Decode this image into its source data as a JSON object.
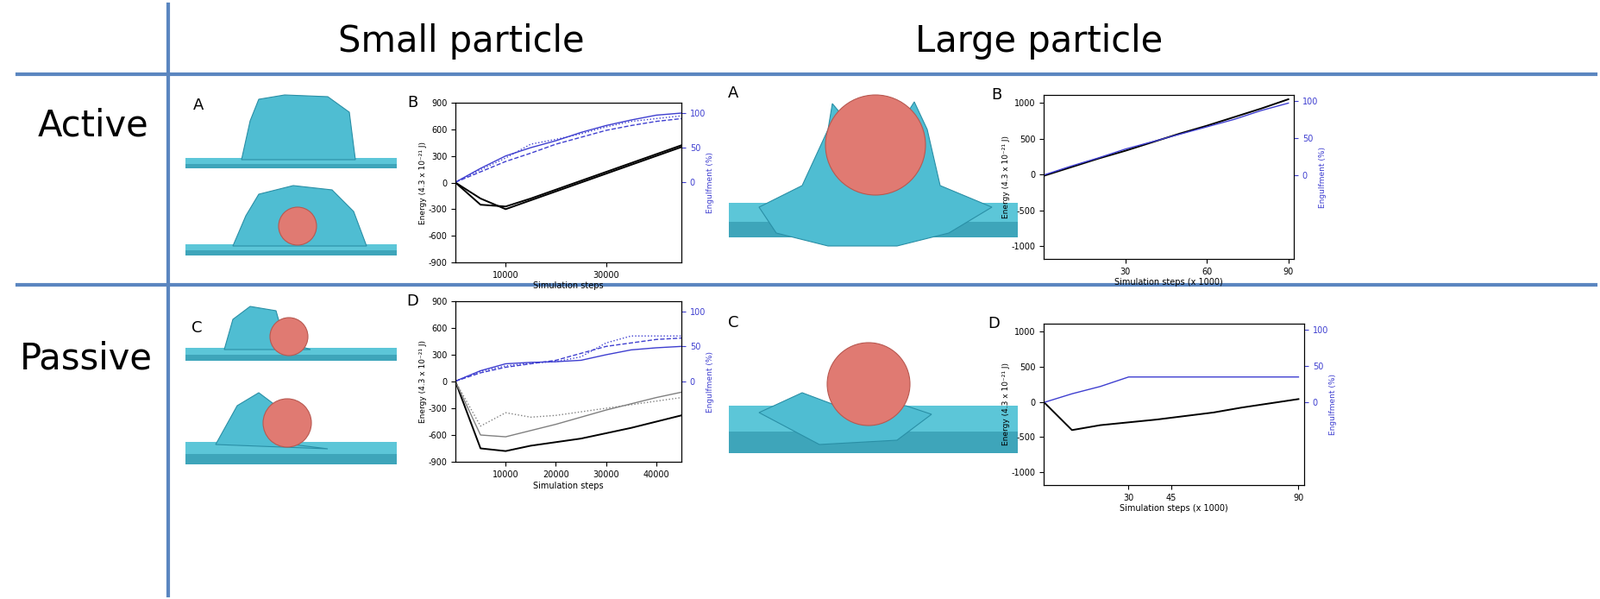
{
  "column_headers": [
    "Small particle",
    "Large particle"
  ],
  "row_headers": [
    "Active",
    "Passive"
  ],
  "image_labels": [
    "A",
    "A",
    "C",
    "C"
  ],
  "chart_data": [
    {
      "type": "line",
      "title": "B",
      "x_label": "Simulation steps",
      "y_label": "Energy (4.3 x 10⁻²¹ J)",
      "y2_label": "Engulfment (%)",
      "x": [
        0,
        5000,
        10000,
        15000,
        20000,
        25000,
        30000,
        35000,
        40000,
        45000
      ],
      "xlim": [
        0,
        45000
      ],
      "xticks": [
        10000,
        30000
      ],
      "ylim": [
        -900,
        900
      ],
      "yticks": [
        -900,
        -600,
        -300,
        0,
        300,
        600,
        900
      ],
      "y2lim": [
        -116,
        115
      ],
      "y2ticks": [
        0,
        50,
        100
      ],
      "grid": false,
      "series": [
        {
          "color": "#000000",
          "line_style": "solid",
          "values": [
            0,
            -250,
            -270,
            -180,
            -80,
            20,
            120,
            220,
            320,
            420
          ]
        },
        {
          "color": "#000000",
          "line_style": "solid",
          "values": [
            0,
            -180,
            -300,
            -200,
            -100,
            0,
            100,
            200,
            300,
            400
          ]
        },
        {
          "color": "#3f3fd0",
          "line_style": "solid",
          "axis": "y2",
          "values": [
            0,
            20,
            38,
            50,
            60,
            72,
            82,
            90,
            97,
            100
          ]
        },
        {
          "color": "#3f3fd0",
          "line_style": "dashed",
          "axis": "y2",
          "values": [
            0,
            15,
            30,
            42,
            55,
            65,
            75,
            82,
            88,
            92
          ]
        },
        {
          "color": "#3f3fd0",
          "line_style": "dotted",
          "axis": "y2",
          "values": [
            0,
            18,
            35,
            55,
            62,
            70,
            80,
            88,
            92,
            96
          ]
        }
      ]
    },
    {
      "type": "line",
      "title": "B",
      "x_label": "Simulation steps (x 1000)",
      "y_label": "Energy (4.3 x 10⁻²¹ J)",
      "y2_label": "Engulfment (%)",
      "x": [
        0,
        10,
        20,
        30,
        40,
        50,
        60,
        70,
        80,
        90
      ],
      "xlim": [
        0,
        92
      ],
      "xticks": [
        30,
        60,
        90
      ],
      "ylim": [
        -1180,
        1110
      ],
      "yticks": [
        -1000,
        -500,
        0,
        500,
        1000
      ],
      "y2lim": [
        -113,
        108
      ],
      "y2ticks": [
        0,
        50,
        100
      ],
      "grid": false,
      "series": [
        {
          "color": "#000000",
          "line_style": "solid",
          "values": [
            -20,
            100,
            220,
            330,
            450,
            570,
            680,
            800,
            920,
            1050
          ]
        },
        {
          "color": "#3f3fd0",
          "line_style": "solid",
          "axis": "y2",
          "values": [
            0,
            12,
            23,
            35,
            45,
            55,
            65,
            75,
            87,
            97
          ]
        }
      ]
    },
    {
      "type": "line",
      "title": "D",
      "x_label": "Simulation steps",
      "y_label": "Energy (4.3 x 10⁻²¹ J)",
      "y2_label": "Engulfment (%)",
      "x": [
        0,
        5000,
        10000,
        15000,
        20000,
        25000,
        30000,
        35000,
        40000,
        45000
      ],
      "xlim": [
        0,
        45000
      ],
      "xticks": [
        10000,
        20000,
        30000,
        40000
      ],
      "ylim": [
        -900,
        900
      ],
      "yticks": [
        -900,
        -600,
        -300,
        0,
        300,
        600,
        900
      ],
      "y2lim": [
        -116,
        115
      ],
      "y2ticks": [
        0,
        50,
        100
      ],
      "grid": false,
      "series": [
        {
          "color": "#000000",
          "line_style": "solid",
          "values": [
            0,
            -750,
            -780,
            -720,
            -680,
            -640,
            -580,
            -520,
            -450,
            -380
          ]
        },
        {
          "color": "#808080",
          "line_style": "solid",
          "values": [
            0,
            -600,
            -620,
            -550,
            -480,
            -400,
            -320,
            -250,
            -180,
            -120
          ]
        },
        {
          "color": "#808080",
          "line_style": "dotted",
          "values": [
            0,
            -500,
            -350,
            -400,
            -380,
            -340,
            -300,
            -260,
            -220,
            -180
          ]
        },
        {
          "color": "#3f3fd0",
          "line_style": "solid",
          "axis": "y2",
          "values": [
            0,
            15,
            25,
            27,
            28,
            30,
            38,
            45,
            48,
            50
          ]
        },
        {
          "color": "#3f3fd0",
          "line_style": "dashed",
          "axis": "y2",
          "values": [
            0,
            12,
            20,
            25,
            30,
            40,
            50,
            55,
            60,
            62
          ]
        },
        {
          "color": "#3f3fd0",
          "line_style": "dotted",
          "axis": "y2",
          "values": [
            0,
            14,
            22,
            26,
            28,
            35,
            55,
            65,
            65,
            65
          ]
        }
      ]
    },
    {
      "type": "line",
      "title": "D",
      "x_label": "Simulation steps (x 1000)",
      "y_label": "Energy (4.3 x 10⁻²¹ J)",
      "y2_label": "Engulfment (%)",
      "x": [
        0,
        10,
        20,
        30,
        40,
        50,
        60,
        70,
        80,
        90
      ],
      "xlim": [
        0,
        92
      ],
      "xticks": [
        30,
        45,
        90
      ],
      "ylim": [
        -1180,
        1110
      ],
      "yticks": [
        -1000,
        -500,
        0,
        500,
        1000
      ],
      "y2lim": [
        -113,
        108
      ],
      "y2ticks": [
        0,
        50,
        100
      ],
      "grid": false,
      "series": [
        {
          "color": "#000000",
          "line_style": "solid",
          "values": [
            0,
            -400,
            -330,
            -290,
            -250,
            -200,
            -150,
            -80,
            -20,
            40
          ]
        },
        {
          "color": "#3f3fd0",
          "line_style": "solid",
          "axis": "y2",
          "values": [
            0,
            12,
            22,
            35,
            35,
            35,
            35,
            35,
            35,
            35
          ]
        }
      ]
    }
  ]
}
